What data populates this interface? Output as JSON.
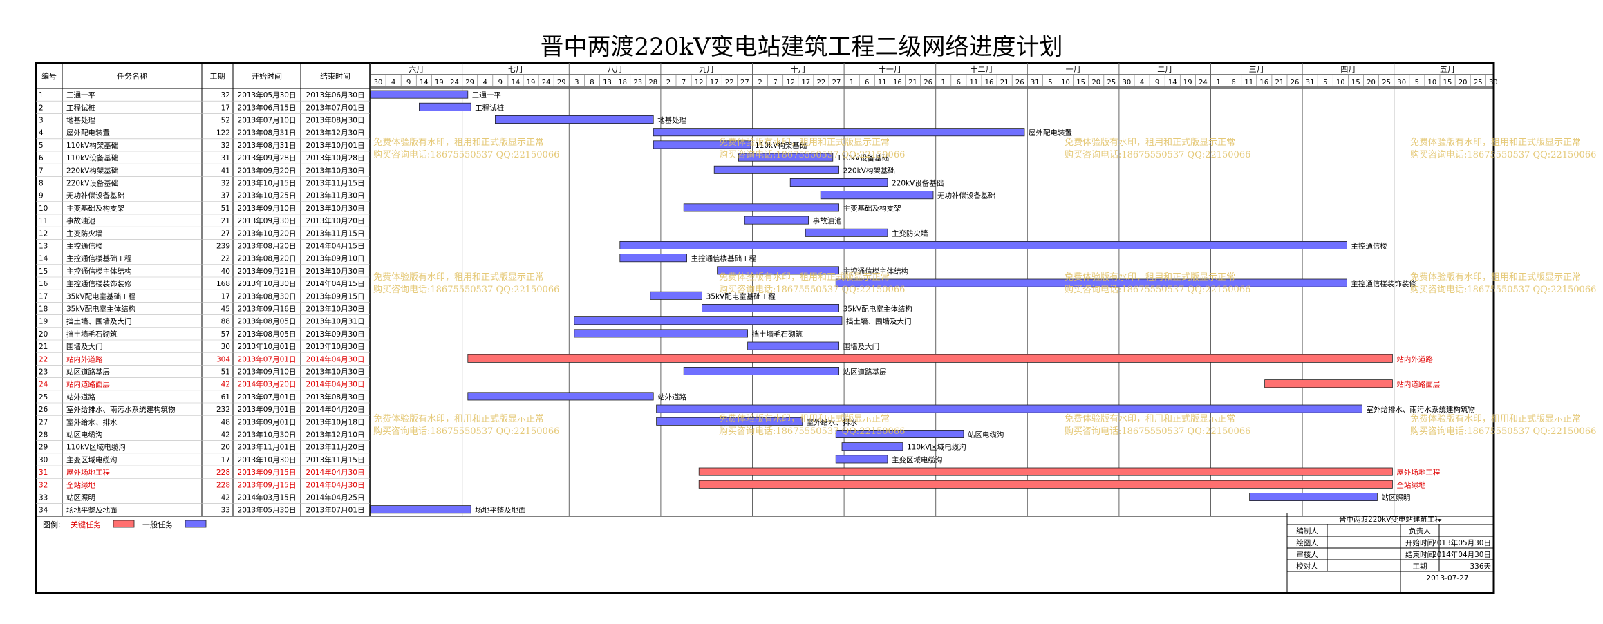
{
  "title": "晋中两渡220kV变电站建筑工程二级网络进度计划",
  "columns": {
    "id": "编号",
    "name": "任务名称",
    "duration": "工期",
    "start": "开始时间",
    "end": "结束时间"
  },
  "months": [
    "六月",
    "七月",
    "八月",
    "九月",
    "十月",
    "十一月",
    "十二月",
    "一月",
    "二月",
    "三月",
    "四月",
    "五月"
  ],
  "day_ticks": [
    [
      "30",
      "4",
      "9",
      "14",
      "19",
      "24"
    ],
    [
      "29",
      "4",
      "9",
      "14",
      "19",
      "24",
      "29"
    ],
    [
      "3",
      "8",
      "13",
      "18",
      "23",
      "28"
    ],
    [
      "2",
      "7",
      "12",
      "17",
      "22",
      "27"
    ],
    [
      "2",
      "7",
      "12",
      "17",
      "22",
      "27"
    ],
    [
      "1",
      "6",
      "11",
      "16",
      "21",
      "26"
    ],
    [
      "1",
      "6",
      "11",
      "16",
      "21",
      "26"
    ],
    [
      "31",
      "5",
      "10",
      "15",
      "20",
      "25"
    ],
    [
      "30",
      "4",
      "9",
      "14",
      "19",
      "24"
    ],
    [
      "1",
      "6",
      "11",
      "16",
      "21",
      "26"
    ],
    [
      "31",
      "5",
      "10",
      "15",
      "20",
      "25"
    ],
    [
      "30",
      "5",
      "10",
      "15",
      "20",
      "25",
      "30"
    ]
  ],
  "colors": {
    "critical": "#ff7070",
    "normal": "#7070ff",
    "critical_text": "#e00000",
    "watermark": "#e0c060"
  },
  "watermarks": [
    "免费体验版有水印，租用和正式版显示正常",
    "购买咨询电话:18675550537 QQ:22150066"
  ],
  "legend": {
    "label": "图例:",
    "critical": "关键任务",
    "normal": "一般任务"
  },
  "info_box": {
    "title": "晋中两渡220kV变电站建筑工程",
    "rows": [
      [
        "编制人",
        "",
        "负责人",
        ""
      ],
      [
        "绘图人",
        "",
        "开始时间",
        "2013年05月30日"
      ],
      [
        "审核人",
        "",
        "结束时间",
        "2014年04月30日"
      ],
      [
        "校对人",
        "",
        "工期",
        "336天"
      ]
    ],
    "date": "2013-07-27"
  },
  "chart_data": {
    "type": "gantt",
    "x_start": "2013-05-30",
    "x_end": "2014-05-31",
    "tasks": [
      {
        "id": 1,
        "name": "三通一平",
        "duration": 32,
        "start": "2013年05月30日",
        "end": "2013年06月30日",
        "critical": false
      },
      {
        "id": 2,
        "name": "工程试桩",
        "duration": 17,
        "start": "2013年06月15日",
        "end": "2013年07月01日",
        "critical": false
      },
      {
        "id": 3,
        "name": "地基处理",
        "duration": 52,
        "start": "2013年07月10日",
        "end": "2013年08月30日",
        "critical": false
      },
      {
        "id": 4,
        "name": "屋外配电装置",
        "duration": 122,
        "start": "2013年08月31日",
        "end": "2013年12月30日",
        "critical": false
      },
      {
        "id": 5,
        "name": "110kV构架基础",
        "duration": 32,
        "start": "2013年08月31日",
        "end": "2013年10月01日",
        "critical": false
      },
      {
        "id": 6,
        "name": "110kV设备基础",
        "duration": 31,
        "start": "2013年09月28日",
        "end": "2013年10月28日",
        "critical": false
      },
      {
        "id": 7,
        "name": "220kV构架基础",
        "duration": 41,
        "start": "2013年09月20日",
        "end": "2013年10月30日",
        "critical": false
      },
      {
        "id": 8,
        "name": "220kV设备基础",
        "duration": 32,
        "start": "2013年10月15日",
        "end": "2013年11月15日",
        "critical": false
      },
      {
        "id": 9,
        "name": "无功补偿设备基础",
        "duration": 37,
        "start": "2013年10月25日",
        "end": "2013年11月30日",
        "critical": false
      },
      {
        "id": 10,
        "name": "主变基础及构支架",
        "duration": 51,
        "start": "2013年09月10日",
        "end": "2013年10月30日",
        "critical": false
      },
      {
        "id": 11,
        "name": "事故油池",
        "duration": 21,
        "start": "2013年09月30日",
        "end": "2013年10月20日",
        "critical": false
      },
      {
        "id": 12,
        "name": "主变防火墙",
        "duration": 27,
        "start": "2013年10月20日",
        "end": "2013年11月15日",
        "critical": false
      },
      {
        "id": 13,
        "name": "主控通信楼",
        "duration": 239,
        "start": "2013年08月20日",
        "end": "2014年04月15日",
        "critical": false
      },
      {
        "id": 14,
        "name": "主控通信楼基础工程",
        "duration": 22,
        "start": "2013年08月20日",
        "end": "2013年09月10日",
        "critical": false
      },
      {
        "id": 15,
        "name": "主控通信楼主体结构",
        "duration": 40,
        "start": "2013年09月21日",
        "end": "2013年10月30日",
        "critical": false
      },
      {
        "id": 16,
        "name": "主控通信楼装饰装修",
        "duration": 168,
        "start": "2013年10月30日",
        "end": "2014年04月15日",
        "critical": false
      },
      {
        "id": 17,
        "name": "35kV配电室基础工程",
        "duration": 17,
        "start": "2013年08月30日",
        "end": "2013年09月15日",
        "critical": false
      },
      {
        "id": 18,
        "name": "35kV配电室主体结构",
        "duration": 45,
        "start": "2013年09月16日",
        "end": "2013年10月30日",
        "critical": false
      },
      {
        "id": 19,
        "name": "挡土墙、围墙及大门",
        "duration": 88,
        "start": "2013年08月05日",
        "end": "2013年10月31日",
        "critical": false
      },
      {
        "id": 20,
        "name": "挡土墙毛石砌筑",
        "duration": 57,
        "start": "2013年08月05日",
        "end": "2013年09月30日",
        "critical": false
      },
      {
        "id": 21,
        "name": "围墙及大门",
        "duration": 30,
        "start": "2013年10月01日",
        "end": "2013年10月30日",
        "critical": false
      },
      {
        "id": 22,
        "name": "站内外道路",
        "duration": 304,
        "start": "2013年07月01日",
        "end": "2014年04月30日",
        "critical": true
      },
      {
        "id": 23,
        "name": "站区道路基层",
        "duration": 51,
        "start": "2013年09月10日",
        "end": "2013年10月30日",
        "critical": false
      },
      {
        "id": 24,
        "name": "站内道路面层",
        "duration": 42,
        "start": "2014年03月20日",
        "end": "2014年04月30日",
        "critical": true
      },
      {
        "id": 25,
        "name": "站外道路",
        "duration": 61,
        "start": "2013年07月01日",
        "end": "2013年08月30日",
        "critical": false
      },
      {
        "id": 26,
        "name": "室外给排水、雨污水系统建构筑物",
        "duration": 232,
        "start": "2013年09月01日",
        "end": "2014年04月20日",
        "critical": false
      },
      {
        "id": 27,
        "name": "室外给水、排水",
        "duration": 48,
        "start": "2013年09月01日",
        "end": "2013年10月18日",
        "critical": false
      },
      {
        "id": 28,
        "name": "站区电缆沟",
        "duration": 42,
        "start": "2013年10月30日",
        "end": "2013年12月10日",
        "critical": false
      },
      {
        "id": 29,
        "name": "110kV区域电缆沟",
        "duration": 20,
        "start": "2013年11月01日",
        "end": "2013年11月20日",
        "critical": false
      },
      {
        "id": 30,
        "name": "主变区域电缆沟",
        "duration": 17,
        "start": "2013年10月30日",
        "end": "2013年11月15日",
        "critical": false
      },
      {
        "id": 31,
        "name": "屋外场地工程",
        "duration": 228,
        "start": "2013年09月15日",
        "end": "2014年04月30日",
        "critical": true
      },
      {
        "id": 32,
        "name": "全站绿地",
        "duration": 228,
        "start": "2013年09月15日",
        "end": "2014年04月30日",
        "critical": true
      },
      {
        "id": 33,
        "name": "站区照明",
        "duration": 42,
        "start": "2014年03月15日",
        "end": "2014年04月25日",
        "critical": false
      },
      {
        "id": 34,
        "name": "场地平整及地面",
        "duration": 33,
        "start": "2013年05月30日",
        "end": "2013年07月01日",
        "critical": false
      }
    ]
  }
}
